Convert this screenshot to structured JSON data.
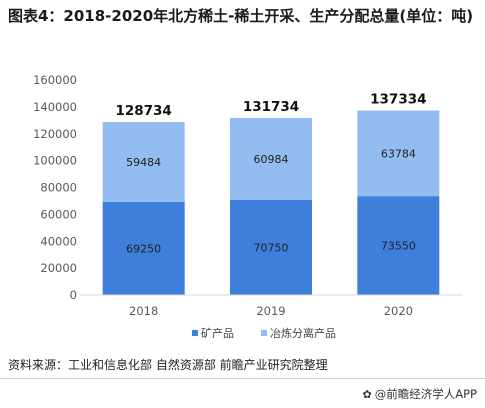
{
  "title": "图表4：2018-2020年北方稀土-稀土开采、生产分配总量(单位：吨)",
  "source": "资料来源：工业和信息化部 自然资源部 前瞻产业研究院整理",
  "brand": {
    "icon": "paw-icon",
    "text": "@前瞻经济学人APP"
  },
  "colors": {
    "mining": "#3f7fdc",
    "smelting": "#93bdf0",
    "axis": "#d9d9d9",
    "tick_text": "#595959"
  },
  "chart_data": {
    "type": "bar",
    "stacked": true,
    "categories": [
      "2018",
      "2019",
      "2020"
    ],
    "series": [
      {
        "name": "矿产品",
        "values": [
          69250,
          70750,
          73550
        ]
      },
      {
        "name": "冶炼分离产品",
        "values": [
          59484,
          60984,
          63784
        ]
      }
    ],
    "totals": [
      128734,
      131734,
      137334
    ],
    "ylim": [
      0,
      160000
    ],
    "yticks": [
      0,
      20000,
      40000,
      60000,
      80000,
      100000,
      120000,
      140000,
      160000
    ],
    "grid": false,
    "legend_position": "bottom"
  }
}
